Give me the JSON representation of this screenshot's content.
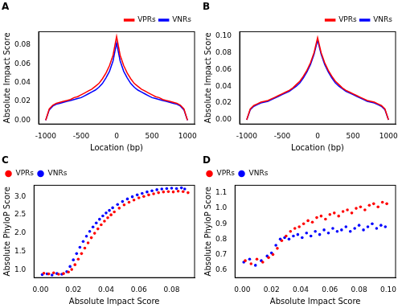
{
  "chart_data": [
    {
      "type": "line",
      "title": "A",
      "xlabel": "Location (bp)",
      "ylabel": "Absolute Impact Score",
      "x": [
        -1000,
        -950,
        -900,
        -850,
        -800,
        -750,
        -700,
        -650,
        -600,
        -550,
        -500,
        -450,
        -400,
        -350,
        -300,
        -250,
        -200,
        -150,
        -100,
        -50,
        0,
        50,
        100,
        150,
        200,
        250,
        300,
        350,
        400,
        450,
        500,
        550,
        600,
        650,
        700,
        750,
        800,
        850,
        900,
        950,
        1000
      ],
      "series": [
        {
          "name": "VPRs",
          "color": "#ff0000",
          "line_style": "solid",
          "values": [
            0.0,
            0.012,
            0.016,
            0.018,
            0.019,
            0.02,
            0.021,
            0.022,
            0.024,
            0.025,
            0.027,
            0.029,
            0.031,
            0.033,
            0.036,
            0.039,
            0.044,
            0.05,
            0.058,
            0.069,
            0.089,
            0.069,
            0.058,
            0.05,
            0.044,
            0.039,
            0.036,
            0.033,
            0.031,
            0.029,
            0.027,
            0.025,
            0.024,
            0.022,
            0.021,
            0.02,
            0.019,
            0.018,
            0.016,
            0.012,
            0.0
          ]
        },
        {
          "name": "VNRs",
          "color": "#0000ff",
          "line_style": "solid",
          "values": [
            0.0,
            0.011,
            0.015,
            0.017,
            0.018,
            0.019,
            0.02,
            0.021,
            0.022,
            0.023,
            0.024,
            0.026,
            0.028,
            0.03,
            0.032,
            0.035,
            0.039,
            0.045,
            0.052,
            0.063,
            0.082,
            0.063,
            0.052,
            0.045,
            0.039,
            0.035,
            0.032,
            0.03,
            0.028,
            0.026,
            0.024,
            0.023,
            0.022,
            0.021,
            0.02,
            0.019,
            0.018,
            0.017,
            0.015,
            0.011,
            0.0
          ]
        }
      ],
      "xlim": [
        -1100,
        1100
      ],
      "xticks": [
        -1000,
        -500,
        0,
        500,
        1000
      ],
      "ylim": [
        -0.004,
        0.094
      ],
      "yticks": [
        {
          "value": 0,
          "label": "0.00"
        },
        0.02,
        0.04,
        0.06,
        0.08
      ],
      "grid": false,
      "legend": "upper right"
    },
    {
      "type": "line",
      "title": "B",
      "xlabel": "Location (bp)",
      "ylabel": "Absolute Impact Score",
      "x": [
        -1000,
        -950,
        -900,
        -850,
        -800,
        -750,
        -700,
        -650,
        -600,
        -550,
        -500,
        -450,
        -400,
        -350,
        -300,
        -250,
        -200,
        -150,
        -100,
        -50,
        0,
        50,
        100,
        150,
        200,
        250,
        300,
        350,
        400,
        450,
        500,
        550,
        600,
        650,
        700,
        750,
        800,
        850,
        900,
        950,
        1000
      ],
      "series": [
        {
          "name": "VPRs",
          "color": "#ff0000",
          "line_style": "solid",
          "values": [
            0.0,
            0.013,
            0.017,
            0.019,
            0.021,
            0.022,
            0.023,
            0.025,
            0.027,
            0.029,
            0.031,
            0.033,
            0.035,
            0.038,
            0.042,
            0.046,
            0.052,
            0.059,
            0.068,
            0.08,
            0.098,
            0.08,
            0.068,
            0.059,
            0.052,
            0.046,
            0.042,
            0.038,
            0.035,
            0.033,
            0.031,
            0.029,
            0.027,
            0.025,
            0.023,
            0.022,
            0.021,
            0.019,
            0.017,
            0.013,
            0.0
          ]
        },
        {
          "name": "VNRs",
          "color": "#0000ff",
          "line_style": "solid",
          "values": [
            0.0,
            0.012,
            0.016,
            0.018,
            0.02,
            0.021,
            0.022,
            0.024,
            0.026,
            0.028,
            0.03,
            0.032,
            0.034,
            0.037,
            0.04,
            0.044,
            0.05,
            0.057,
            0.066,
            0.078,
            0.095,
            0.078,
            0.066,
            0.057,
            0.05,
            0.044,
            0.04,
            0.037,
            0.034,
            0.032,
            0.03,
            0.028,
            0.026,
            0.024,
            0.022,
            0.021,
            0.02,
            0.018,
            0.016,
            0.012,
            0.0
          ]
        }
      ],
      "xlim": [
        -1100,
        1100
      ],
      "xticks": [
        -1000,
        -500,
        0,
        500,
        1000
      ],
      "ylim": [
        -0.005,
        0.105
      ],
      "yticks": [
        {
          "value": 0,
          "label": "0.00"
        },
        0.02,
        0.04,
        0.06,
        0.08,
        {
          "value": 0.1,
          "label": "0.10"
        }
      ],
      "grid": false,
      "legend": "upper right"
    },
    {
      "type": "scatter",
      "title": "C",
      "xlabel": "Absolute Impact Score",
      "ylabel": "Absolute PhyloP Score",
      "series": [
        {
          "name": "VPRs",
          "color": "#ff0000",
          "marker": "circle",
          "x": [
            0.002,
            0.005,
            0.008,
            0.011,
            0.014,
            0.017,
            0.019,
            0.021,
            0.023,
            0.025,
            0.027,
            0.029,
            0.031,
            0.033,
            0.035,
            0.037,
            0.039,
            0.041,
            0.043,
            0.045,
            0.048,
            0.051,
            0.054,
            0.057,
            0.06,
            0.063,
            0.066,
            0.069,
            0.072,
            0.075,
            0.078,
            0.081,
            0.084,
            0.087,
            0.09
          ],
          "values": [
            0.92,
            0.9,
            0.93,
            0.89,
            0.91,
            0.95,
            1.02,
            1.15,
            1.3,
            1.45,
            1.6,
            1.74,
            1.88,
            2.0,
            2.12,
            2.23,
            2.33,
            2.42,
            2.5,
            2.58,
            2.68,
            2.77,
            2.84,
            2.9,
            2.96,
            3.0,
            3.04,
            3.07,
            3.1,
            3.12,
            3.13,
            3.12,
            3.14,
            3.13,
            3.1
          ]
        },
        {
          "name": "VNRs",
          "color": "#0000ff",
          "marker": "circle",
          "x": [
            0.001,
            0.004,
            0.007,
            0.01,
            0.013,
            0.016,
            0.018,
            0.02,
            0.022,
            0.024,
            0.026,
            0.028,
            0.03,
            0.032,
            0.034,
            0.036,
            0.038,
            0.04,
            0.042,
            0.044,
            0.047,
            0.05,
            0.053,
            0.056,
            0.059,
            0.062,
            0.065,
            0.068,
            0.071,
            0.074,
            0.077,
            0.08,
            0.083,
            0.086,
            0.088
          ],
          "values": [
            0.88,
            0.9,
            0.87,
            0.91,
            0.89,
            0.96,
            1.1,
            1.28,
            1.45,
            1.62,
            1.78,
            1.92,
            2.05,
            2.17,
            2.28,
            2.38,
            2.47,
            2.55,
            2.62,
            2.69,
            2.78,
            2.86,
            2.93,
            2.99,
            3.04,
            3.08,
            3.12,
            3.15,
            3.18,
            3.2,
            3.21,
            3.22,
            3.21,
            3.23,
            3.2
          ]
        }
      ],
      "xlim": [
        -0.004,
        0.094
      ],
      "xticks": [
        {
          "value": 0,
          "label": "0.00"
        },
        0.02,
        0.04,
        0.06,
        0.08
      ],
      "ylim": [
        0.8,
        3.3
      ],
      "yticks": [
        {
          "value": 1,
          "label": "1.0"
        },
        1.5,
        {
          "value": 2,
          "label": "2.0"
        },
        2.5,
        {
          "value": 3,
          "label": "3.0"
        }
      ],
      "grid": false,
      "legend": "upper left"
    },
    {
      "type": "scatter",
      "title": "D",
      "xlabel": "Absolute Impact Score",
      "ylabel": "Absolute PhyloP Score",
      "series": [
        {
          "name": "VPRs",
          "color": "#ff0000",
          "marker": "circle",
          "x": [
            0.002,
            0.006,
            0.01,
            0.014,
            0.018,
            0.021,
            0.024,
            0.027,
            0.03,
            0.033,
            0.036,
            0.039,
            0.042,
            0.045,
            0.048,
            0.051,
            0.054,
            0.057,
            0.06,
            0.063,
            0.066,
            0.069,
            0.072,
            0.075,
            0.078,
            0.081,
            0.084,
            0.087,
            0.09,
            0.093,
            0.096,
            0.099
          ],
          "values": [
            0.66,
            0.64,
            0.67,
            0.65,
            0.68,
            0.7,
            0.74,
            0.79,
            0.82,
            0.85,
            0.87,
            0.88,
            0.9,
            0.92,
            0.91,
            0.94,
            0.95,
            0.93,
            0.96,
            0.97,
            0.95,
            0.98,
            0.99,
            0.97,
            1.0,
            1.01,
            0.99,
            1.02,
            1.03,
            1.01,
            1.04,
            1.03
          ]
        },
        {
          "name": "VNRs",
          "color": "#0000ff",
          "marker": "circle",
          "x": [
            0.001,
            0.005,
            0.009,
            0.013,
            0.017,
            0.02,
            0.023,
            0.026,
            0.029,
            0.032,
            0.035,
            0.038,
            0.041,
            0.044,
            0.047,
            0.05,
            0.053,
            0.056,
            0.059,
            0.062,
            0.065,
            0.068,
            0.071,
            0.074,
            0.077,
            0.08,
            0.083,
            0.086,
            0.089,
            0.092,
            0.095,
            0.098
          ],
          "values": [
            0.65,
            0.67,
            0.63,
            0.66,
            0.69,
            0.71,
            0.76,
            0.8,
            0.81,
            0.8,
            0.82,
            0.83,
            0.81,
            0.84,
            0.82,
            0.85,
            0.83,
            0.86,
            0.84,
            0.87,
            0.85,
            0.86,
            0.88,
            0.85,
            0.87,
            0.89,
            0.86,
            0.88,
            0.9,
            0.87,
            0.89,
            0.88
          ]
        }
      ],
      "xlim": [
        -0.005,
        0.105
      ],
      "xticks": [
        {
          "value": 0,
          "label": "0.00"
        },
        0.02,
        0.04,
        0.06,
        0.08,
        {
          "value": 0.1,
          "label": "0.10"
        }
      ],
      "ylim": [
        0.55,
        1.15
      ],
      "yticks": [
        0.6,
        0.7,
        0.8,
        0.9,
        {
          "value": 1,
          "label": "1.0"
        },
        1.1
      ],
      "grid": false,
      "legend": "upper left"
    }
  ]
}
